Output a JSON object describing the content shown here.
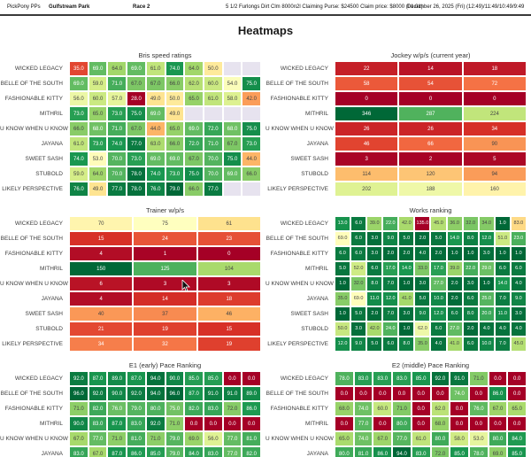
{
  "header": {
    "app": "PickPony PPs",
    "track": "Gulfstream Park",
    "race": "Race 2",
    "conditions": "5 1/2 Furlongs Dirt Clm 8000n2l Claiming Purse: $24500 Claim price: $8000 (01.01)",
    "datetime": "December 26, 2025 (Fri) (12:49)/11:49/10:49/9:49"
  },
  "page_title": "Heatmaps",
  "colors": {
    "empty_cell": "#e7e3ef",
    "scale_low": "#a50026",
    "scale_mid": "#ffffbf",
    "scale_high": "#006837"
  },
  "chart_data": [
    {
      "type": "heatmap",
      "id": "bris-speed-ratings",
      "title": "Bris speed ratings",
      "decimals": 1,
      "vmin": 28,
      "vmax": 79,
      "reverse": false,
      "rows": [
        {
          "label": "WICKED LEGACY",
          "values": [
            35.0,
            69.0,
            64.0,
            69.0,
            61.0,
            74.0,
            64.0,
            50.0,
            null,
            null
          ]
        },
        {
          "label": "BELLE OF THE SOUTH",
          "values": [
            69.0,
            59.0,
            71.0,
            67.0,
            67.0,
            66.0,
            62.0,
            60.0,
            54.0,
            75.0
          ]
        },
        {
          "label": "FASHIONABLE KITTY",
          "values": [
            56.0,
            60.0,
            57.0,
            28.0,
            49.0,
            50.0,
            65.0,
            61.0,
            58.0,
            42.0
          ]
        },
        {
          "label": "MITHRIL",
          "values": [
            73.0,
            65.0,
            73.0,
            75.0,
            69.0,
            49.0,
            null,
            null,
            null,
            null
          ]
        },
        {
          "label": "U KNOW WHEN U KNOW",
          "values": [
            66.0,
            68.0,
            71.0,
            67.0,
            44.0,
            65.0,
            69.0,
            72.0,
            68.0,
            75.0
          ]
        },
        {
          "label": "JAYANA",
          "values": [
            61.0,
            73.0,
            74.0,
            77.0,
            63.0,
            66.0,
            72.0,
            71.0,
            67.0,
            73.0
          ]
        },
        {
          "label": "SWEET SASH",
          "values": [
            74.0,
            53.0,
            70.0,
            73.0,
            69.0,
            69.0,
            67.0,
            70.0,
            75.0,
            44.0
          ]
        },
        {
          "label": "STUBOLD",
          "values": [
            59.0,
            64.0,
            70.0,
            78.0,
            74.0,
            73.0,
            75.0,
            70.0,
            69.0,
            66.0
          ]
        },
        {
          "label": "LIKELY PERSPECTIVE",
          "values": [
            76.0,
            49.0,
            77.0,
            78.0,
            76.0,
            79.0,
            66.0,
            77.0,
            null,
            null
          ]
        }
      ]
    },
    {
      "type": "heatmap",
      "id": "jockey-wps",
      "title": "Jockey w/p/s (current year)",
      "decimals": 0,
      "vmin": 0,
      "vmax": 346,
      "reverse": false,
      "rows": [
        {
          "label": "WICKED LEGACY",
          "values": [
            22,
            14,
            18
          ]
        },
        {
          "label": "BELLE OF THE SOUTH",
          "values": [
            58,
            54,
            72
          ]
        },
        {
          "label": "FASHIONABLE KITTY",
          "values": [
            0,
            0,
            0
          ]
        },
        {
          "label": "MITHRIL",
          "values": [
            346,
            287,
            224
          ]
        },
        {
          "label": "U KNOW WHEN U KNOW",
          "values": [
            26,
            26,
            34
          ]
        },
        {
          "label": "JAYANA",
          "values": [
            46,
            66,
            90
          ]
        },
        {
          "label": "SWEET SASH",
          "values": [
            3,
            2,
            5
          ]
        },
        {
          "label": "STUBOLD",
          "values": [
            114,
            120,
            94
          ]
        },
        {
          "label": "LIKELY PERSPECTIVE",
          "values": [
            202,
            188,
            160
          ]
        }
      ]
    },
    {
      "type": "heatmap",
      "id": "trainer-wps",
      "title": "Trainer w/p/s",
      "decimals": 0,
      "vmin": 0,
      "vmax": 150,
      "reverse": false,
      "rows": [
        {
          "label": "WICKED LEGACY",
          "values": [
            70,
            75,
            61
          ]
        },
        {
          "label": "BELLE OF THE SOUTH",
          "values": [
            15,
            24,
            23
          ]
        },
        {
          "label": "FASHIONABLE KITTY",
          "values": [
            4,
            1,
            0
          ]
        },
        {
          "label": "MITHRIL",
          "values": [
            150,
            125,
            104
          ]
        },
        {
          "label": "U KNOW WHEN U KNOW",
          "values": [
            6,
            3,
            3
          ]
        },
        {
          "label": "JAYANA",
          "values": [
            4,
            14,
            18
          ]
        },
        {
          "label": "SWEET SASH",
          "values": [
            40,
            37,
            46
          ]
        },
        {
          "label": "STUBOLD",
          "values": [
            21,
            19,
            15
          ]
        },
        {
          "label": "LIKELY PERSPECTIVE",
          "values": [
            34,
            32,
            19
          ]
        }
      ]
    },
    {
      "type": "heatmap",
      "id": "works-ranking",
      "title": "Works ranking",
      "decimals": 1,
      "vmin": 1,
      "vmax": 135,
      "reverse": true,
      "rows": [
        {
          "label": "WICKED LEGACY",
          "values": [
            13.0,
            6.0,
            39.0,
            22.0,
            42.0,
            135.0,
            45.0,
            36.0,
            32.0,
            34.0,
            1.0,
            83.0
          ]
        },
        {
          "label": "BELLE OF THE SOUTH",
          "values": [
            69.0,
            6.0,
            3.0,
            9.0,
            5.0,
            2.0,
            5.0,
            14.0,
            8.0,
            12.0,
            51.0,
            23.0
          ]
        },
        {
          "label": "FASHIONABLE KITTY",
          "values": [
            6.0,
            6.0,
            3.0,
            2.0,
            2.0,
            4.0,
            2.0,
            1.0,
            1.0,
            3.0,
            1.0,
            1.0
          ]
        },
        {
          "label": "MITHRIL",
          "values": [
            5.0,
            52.0,
            6.0,
            17.0,
            14.0,
            33.0,
            17.0,
            39.0,
            22.0,
            29.0,
            6.0,
            6.0
          ]
        },
        {
          "label": "U KNOW WHEN U KNOW",
          "values": [
            1.0,
            32.0,
            8.0,
            7.0,
            1.0,
            3.0,
            27.0,
            2.0,
            3.0,
            1.0,
            14.0,
            4.0
          ]
        },
        {
          "label": "JAYANA",
          "values": [
            35.0,
            69.0,
            11.0,
            12.0,
            41.0,
            5.0,
            10.0,
            2.0,
            6.0,
            25.0,
            7.0,
            9.0
          ]
        },
        {
          "label": "SWEET SASH",
          "values": [
            1.0,
            5.0,
            2.0,
            7.0,
            3.0,
            9.0,
            12.0,
            6.0,
            8.0,
            20.0,
            11.0,
            3.0
          ]
        },
        {
          "label": "STUBOLD",
          "values": [
            50.0,
            3.0,
            42.0,
            24.0,
            1.0,
            62.0,
            6.0,
            27.0,
            2.0,
            4.0,
            4.0,
            4.0
          ]
        },
        {
          "label": "LIKELY PERSPECTIVE",
          "values": [
            12.0,
            9.0,
            5.0,
            6.0,
            8.0,
            35.0,
            4.0,
            41.0,
            6.0,
            10.0,
            7.0,
            45.0
          ]
        }
      ]
    },
    {
      "type": "heatmap",
      "id": "e1-early-pace",
      "title": "E1 (early) Pace Ranking",
      "decimals": 1,
      "vmin": 0,
      "vmax": 96,
      "reverse": false,
      "rows": [
        {
          "label": "WICKED LEGACY",
          "values": [
            92.0,
            87.0,
            89.0,
            87.0,
            94.0,
            90.0,
            85.0,
            85.0,
            0.0,
            0.0
          ]
        },
        {
          "label": "BELLE OF THE SOUTH",
          "values": [
            96.0,
            92.0,
            90.0,
            92.0,
            94.0,
            96.0,
            87.0,
            91.0,
            91.0,
            89.0
          ]
        },
        {
          "label": "FASHIONABLE KITTY",
          "values": [
            71.0,
            82.0,
            76.0,
            79.0,
            80.0,
            75.0,
            82.0,
            83.0,
            72.0,
            86.0
          ]
        },
        {
          "label": "MITHRIL",
          "values": [
            90.0,
            83.0,
            87.0,
            83.0,
            92.0,
            71.0,
            0.0,
            0.0,
            0.0,
            0.0
          ]
        },
        {
          "label": "U KNOW WHEN U KNOW",
          "values": [
            67.0,
            77.0,
            71.0,
            81.0,
            71.0,
            79.0,
            69.0,
            56.0,
            77.0,
            81.0
          ]
        },
        {
          "label": "JAYANA",
          "values": [
            83.0,
            67.0,
            87.0,
            86.0,
            85.0,
            79.0,
            84.0,
            83.0,
            77.0,
            82.0
          ]
        }
      ]
    },
    {
      "type": "heatmap",
      "id": "e2-middle-pace",
      "title": "E2 (middle) Pace Ranking",
      "decimals": 1,
      "vmin": 0,
      "vmax": 94,
      "reverse": false,
      "rows": [
        {
          "label": "WICKED LEGACY",
          "values": [
            78.0,
            83.0,
            83.0,
            83.0,
            85.0,
            92.0,
            91.0,
            71.0,
            0.0,
            0.0
          ]
        },
        {
          "label": "BELLE OF THE SOUTH",
          "values": [
            0.0,
            0.0,
            0.0,
            0.0,
            0.0,
            0.0,
            74.0,
            0.0,
            86.0,
            0.0
          ]
        },
        {
          "label": "FASHIONABLE KITTY",
          "values": [
            68.0,
            74.0,
            60.0,
            71.0,
            0.0,
            62.0,
            0.0,
            76.0,
            67.0,
            65.0
          ]
        },
        {
          "label": "MITHRIL",
          "values": [
            0.0,
            77.0,
            0.0,
            80.0,
            0.0,
            68.0,
            0.0,
            0.0,
            0.0,
            0.0
          ]
        },
        {
          "label": "U KNOW WHEN U KNOW",
          "values": [
            65.0,
            74.0,
            67.0,
            77.0,
            61.0,
            80.0,
            58.0,
            53.0,
            80.0,
            84.0
          ]
        },
        {
          "label": "JAYANA",
          "values": [
            80.0,
            81.0,
            86.0,
            94.0,
            83.0,
            72.0,
            85.0,
            78.0,
            69.0,
            85.0
          ]
        }
      ]
    }
  ]
}
